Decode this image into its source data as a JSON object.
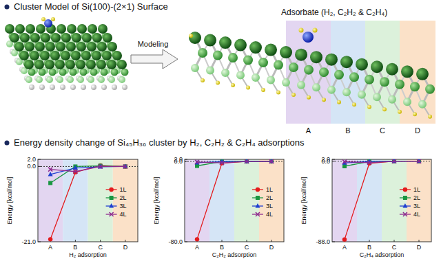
{
  "diagram": {
    "title": "Cluster Model of Si(100)-(2×1) Surface",
    "arrow_label": "Modeling",
    "adsorbate_label": "Adsorbate (H₂, C₂H₂ & C₂H₄)",
    "regions": [
      "A",
      "B",
      "C",
      "D"
    ]
  },
  "charts_title": "Energy density change of Si₄₅H₃₆ cluster by H₂, C₂H₂ & C₂H₄ adsorptions",
  "chart_data": [
    {
      "type": "line",
      "x_label": "H₂ adsorption",
      "y_label": "Energy [kcal/mol]",
      "categories": [
        "A",
        "B",
        "C",
        "D"
      ],
      "series": [
        {
          "name": "1L",
          "color": "#e41a1c",
          "marker": "circle",
          "line_style": "solid",
          "values": [
            -20.3,
            -1.6,
            0.3,
            0.0
          ]
        },
        {
          "name": "2L",
          "color": "#1a9641",
          "marker": "square",
          "line_style": "solid",
          "values": [
            -4.6,
            0.0,
            0.2,
            0.0
          ]
        },
        {
          "name": "3L",
          "color": "#1f3fd0",
          "marker": "triangle",
          "line_style": "solid",
          "values": [
            -2.2,
            -0.4,
            -0.1,
            0.0
          ]
        },
        {
          "name": "4L",
          "color": "#8e2a8e",
          "marker": "x",
          "line_style": "solid",
          "values": [
            -0.8,
            -1.4,
            0.0,
            0.0
          ]
        }
      ],
      "ylim": [
        -21,
        2
      ],
      "yticks": [
        {
          "value": 2,
          "label": "2.0"
        },
        {
          "value": 0,
          "label": "0.0"
        },
        {
          "value": -21,
          "label": "-21.0"
        }
      ],
      "grid": false,
      "legend": "right"
    },
    {
      "type": "line",
      "x_label": "C₂H₂ adsorption",
      "y_label": "Energy [kcal/mol]",
      "categories": [
        "A",
        "B",
        "C",
        "D"
      ],
      "series": [
        {
          "name": "1L",
          "color": "#e41a1c",
          "marker": "circle",
          "line_style": "solid",
          "values": [
            -77.5,
            -1.8,
            0.0,
            0.0
          ]
        },
        {
          "name": "2L",
          "color": "#1a9641",
          "marker": "square",
          "line_style": "solid",
          "values": [
            -4.5,
            -0.2,
            0.0,
            0.0
          ]
        },
        {
          "name": "3L",
          "color": "#1f3fd0",
          "marker": "triangle",
          "line_style": "solid",
          "values": [
            -1.4,
            -0.3,
            0.0,
            0.0
          ]
        },
        {
          "name": "4L",
          "color": "#8e2a8e",
          "marker": "x",
          "line_style": "solid",
          "values": [
            -0.6,
            -1.5,
            -0.1,
            0.0
          ]
        }
      ],
      "ylim": [
        -80,
        2
      ],
      "yticks": [
        {
          "value": 2,
          "label": "2.0"
        },
        {
          "value": 0,
          "label": "0.0"
        },
        {
          "value": -80,
          "label": "-80.0"
        }
      ],
      "grid": false,
      "legend": "right"
    },
    {
      "type": "line",
      "x_label": "C₂H₄ adsorption",
      "y_label": "Energy [kcal/mol]",
      "categories": [
        "A",
        "B",
        "C",
        "D"
      ],
      "series": [
        {
          "name": "1L",
          "color": "#e41a1c",
          "marker": "circle",
          "line_style": "solid",
          "values": [
            -85.5,
            -2.3,
            0.1,
            0.0
          ]
        },
        {
          "name": "2L",
          "color": "#1a9641",
          "marker": "square",
          "line_style": "solid",
          "values": [
            -5.5,
            -0.4,
            0.1,
            0.0
          ]
        },
        {
          "name": "3L",
          "color": "#1f3fd0",
          "marker": "triangle",
          "line_style": "solid",
          "values": [
            -1.9,
            -0.4,
            0.0,
            0.0
          ]
        },
        {
          "name": "4L",
          "color": "#8e2a8e",
          "marker": "x",
          "line_style": "solid",
          "values": [
            -0.6,
            -1.6,
            -0.1,
            0.0
          ]
        }
      ],
      "ylim": [
        -88,
        2
      ],
      "yticks": [
        {
          "value": 2,
          "label": "2.0"
        },
        {
          "value": 0,
          "label": "0.0"
        },
        {
          "value": -88,
          "label": "-88.0"
        }
      ],
      "grid": false,
      "legend": "right"
    }
  ]
}
